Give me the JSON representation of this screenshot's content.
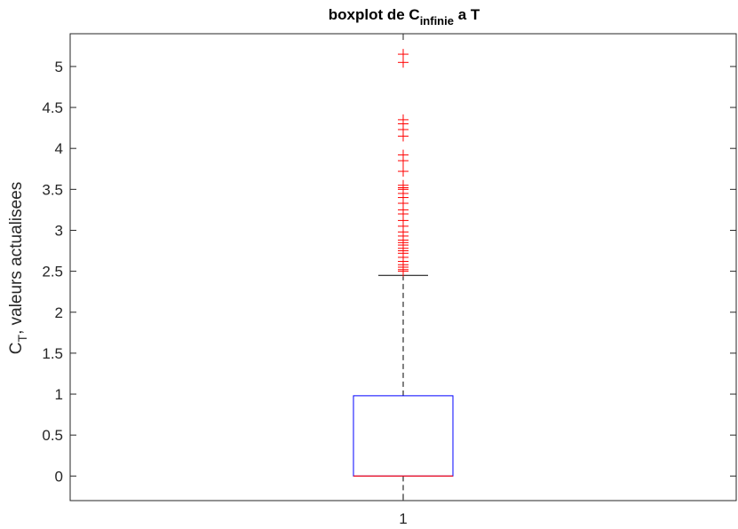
{
  "chart_data": {
    "type": "boxplot",
    "title": {
      "main": "boxplot de C",
      "subscript": "infinie",
      "suffix": " a T"
    },
    "ylabel": {
      "main": "C",
      "subscript": "T",
      "suffix": ", valeurs actualisees"
    },
    "xlabel": "",
    "categories": [
      "1"
    ],
    "ylim": [
      -0.3,
      5.4
    ],
    "yticks": [
      0,
      0.5,
      1,
      1.5,
      2,
      2.5,
      3,
      3.5,
      4,
      4.5,
      5
    ],
    "ytick_labels": [
      "0",
      "0.5",
      "1",
      "1.5",
      "2",
      "2.5",
      "3",
      "3.5",
      "4",
      "4.5",
      "5"
    ],
    "grid": false,
    "box": {
      "q1": 0.0,
      "median": 0.0,
      "q3": 0.98,
      "whisker_low": 0.0,
      "whisker_high": 2.45
    },
    "outliers": [
      2.5,
      2.52,
      2.55,
      2.58,
      2.62,
      2.67,
      2.72,
      2.75,
      2.78,
      2.82,
      2.85,
      2.88,
      2.93,
      2.98,
      3.05,
      3.12,
      3.2,
      3.25,
      3.33,
      3.4,
      3.45,
      3.5,
      3.52,
      3.55,
      3.72,
      3.85,
      3.92,
      4.15,
      4.23,
      4.3,
      4.35,
      5.05,
      5.15
    ],
    "colors": {
      "box": "#0000ff",
      "median": "#ff0000",
      "outlier": "#ff0000",
      "whisker": "#000000",
      "axes": "#262626"
    }
  }
}
